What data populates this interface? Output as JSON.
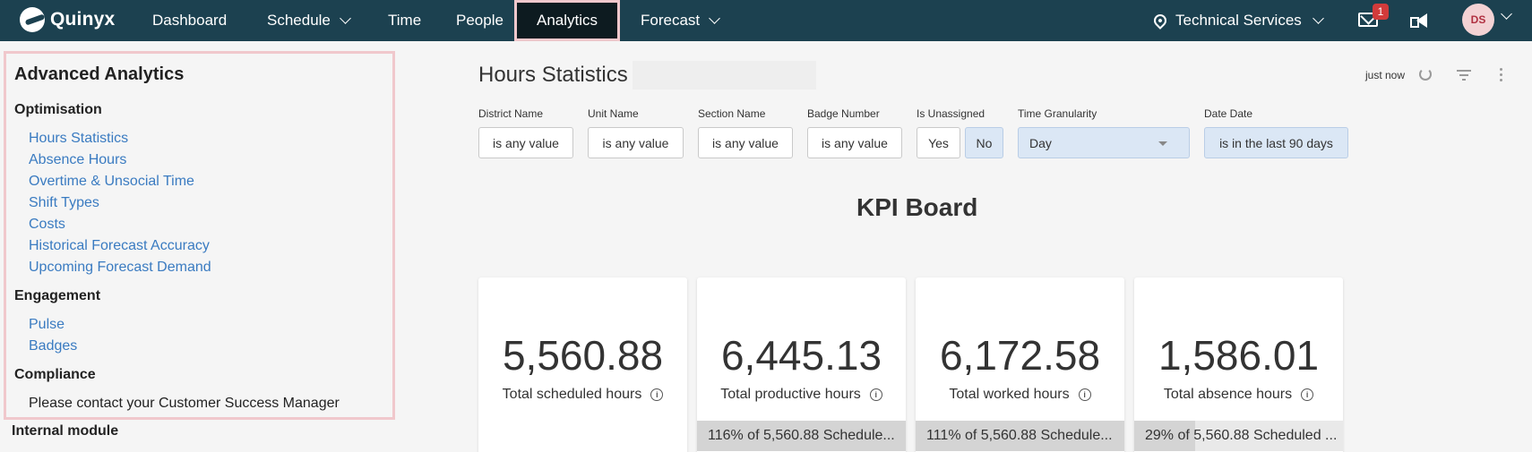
{
  "topbar": {
    "brand": "Quinyx",
    "nav": [
      {
        "label": "Dashboard",
        "dropdown": false
      },
      {
        "label": "Schedule",
        "dropdown": true
      },
      {
        "label": "Time",
        "dropdown": false
      },
      {
        "label": "People",
        "dropdown": false
      },
      {
        "label": "Analytics",
        "dropdown": false,
        "active": true
      },
      {
        "label": "Forecast",
        "dropdown": true
      }
    ],
    "location": "Technical Services",
    "mail_badge": "1",
    "avatar_initials": "DS"
  },
  "sidebar": {
    "title": "Advanced Analytics",
    "groups": [
      {
        "label": "Optimisation",
        "items": [
          "Hours Statistics",
          "Absence Hours",
          "Overtime & Unsocial Time",
          "Shift Types",
          "Costs",
          "Historical Forecast Accuracy",
          "Upcoming Forecast Demand"
        ]
      },
      {
        "label": "Engagement",
        "items": [
          "Pulse",
          "Badges"
        ]
      },
      {
        "label": "Compliance",
        "text": "Please contact your Customer Success Manager"
      }
    ],
    "internal_module": "Internal module"
  },
  "main": {
    "title": "Hours Statistics",
    "updated": "just now",
    "filters": [
      {
        "label": "District Name",
        "value": "is any value"
      },
      {
        "label": "Unit Name",
        "value": "is any value"
      },
      {
        "label": "Section Name",
        "value": "is any value"
      },
      {
        "label": "Badge Number",
        "value": "is any value"
      },
      {
        "label": "Is Unassigned",
        "options": [
          "Yes",
          "No"
        ],
        "selected": "No"
      },
      {
        "label": "Time Granularity",
        "value": "Day"
      },
      {
        "label": "Date Date",
        "value": "is in the last 90 days"
      }
    ],
    "kpi_title": "KPI Board",
    "cards": [
      {
        "value": "5,560.88",
        "label": "Total scheduled hours",
        "footer": ""
      },
      {
        "value": "6,445.13",
        "label": "Total productive hours",
        "footer": "116% of 5,560.88 Schedule...",
        "percent": 116
      },
      {
        "value": "6,172.58",
        "label": "Total worked hours",
        "footer": "111% of 5,560.88 Schedule...",
        "percent": 111
      },
      {
        "value": "1,586.01",
        "label": "Total absence hours",
        "footer": "29% of 5,560.88 Scheduled ...",
        "percent": 29
      }
    ]
  },
  "colors": {
    "topbar": "#1c4150",
    "link": "#3a7bc1",
    "highlight": "#f0c8cc",
    "badge": "#d23b3b"
  }
}
